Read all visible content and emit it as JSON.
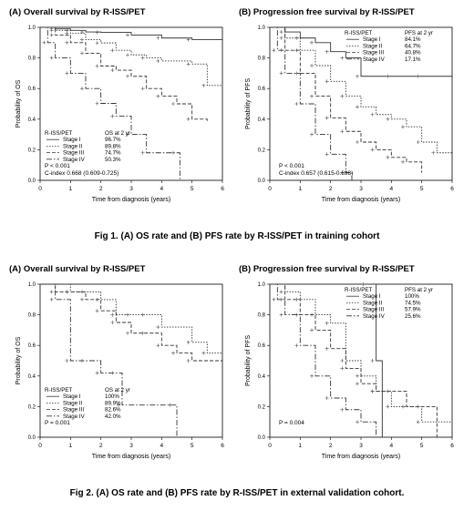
{
  "figure1": {
    "caption": "Fig 1. (A) OS rate and (B) PFS rate by R-ISS/PET in training cohort"
  },
  "figure2": {
    "caption": "Fig 2. (A) OS rate and (B) PFS rate by R-ISS/PET in external validation cohort."
  },
  "chart_data": [
    {
      "type": "line",
      "panel": "fig1A",
      "title": "(A) Overall survival by R-ISS/PET",
      "xlabel": "Time from diagnosis (years)",
      "ylabel": "Probability of OS",
      "xlim": [
        0,
        6
      ],
      "ylim": [
        0,
        1
      ],
      "xticks": [
        "0",
        "1",
        "2",
        "3",
        "4",
        "5",
        "6"
      ],
      "yticks": [
        "0.0",
        "0.2",
        "0.4",
        "0.6",
        "0.8",
        "1.0"
      ],
      "legend_header": [
        "R-ISS/PET",
        "OS at 2 yr"
      ],
      "legend_position": "bottom-left",
      "stats": [
        "P < 0.001",
        "C-index 0.668 (0.609-0.725)"
      ],
      "series": [
        {
          "name": "Stage I",
          "rate": "96.7%",
          "dash": "",
          "x": [
            0,
            0.5,
            1,
            1.5,
            2,
            3,
            4,
            5,
            6
          ],
          "y": [
            1,
            0.99,
            0.98,
            0.97,
            0.967,
            0.95,
            0.93,
            0.92,
            0.92
          ]
        },
        {
          "name": "Stage II",
          "rate": "89.8%",
          "dash": "1.5,1.5",
          "x": [
            0,
            0.5,
            1,
            1.5,
            2,
            2.5,
            3,
            3.5,
            4,
            5,
            5.5,
            6
          ],
          "y": [
            1,
            0.98,
            0.96,
            0.92,
            0.898,
            0.85,
            0.82,
            0.8,
            0.78,
            0.76,
            0.62,
            0.62
          ]
        },
        {
          "name": "Stage III",
          "rate": "74.7%",
          "dash": "4,2",
          "x": [
            0,
            0.5,
            1,
            1.5,
            2,
            2.5,
            3,
            3.5,
            4,
            4.5,
            5,
            5.5
          ],
          "y": [
            1,
            0.95,
            0.9,
            0.83,
            0.747,
            0.72,
            0.68,
            0.6,
            0.55,
            0.5,
            0.4,
            0.38
          ]
        },
        {
          "name": "Stage IV",
          "rate": "50.3%",
          "dash": "6,2,1.5,2",
          "x": [
            0,
            0.25,
            0.5,
            1,
            1.5,
            2,
            2.5,
            3,
            3.5,
            4.5,
            4.6
          ],
          "y": [
            1,
            0.9,
            0.8,
            0.7,
            0.6,
            0.503,
            0.42,
            0.3,
            0.18,
            0.18,
            0
          ]
        }
      ]
    },
    {
      "type": "line",
      "panel": "fig1B",
      "title": "(B) Progression free survival by R-ISS/PET",
      "xlabel": "Time from diagnosis (years)",
      "ylabel": "Probability of PFS",
      "xlim": [
        0,
        6
      ],
      "ylim": [
        0,
        1
      ],
      "xticks": [
        "0",
        "1",
        "2",
        "3",
        "4",
        "5",
        "6"
      ],
      "yticks": [
        "0.0",
        "0.2",
        "0.4",
        "0.6",
        "0.8",
        "1.0"
      ],
      "legend_header": [
        "R-ISS/PET",
        "PFS at 2 yr"
      ],
      "legend_position": "top-right",
      "stats": [
        "P < 0.001",
        "C-index 0.657 (0.615-0.698)"
      ],
      "series": [
        {
          "name": "Stage I",
          "rate": "84.1%",
          "dash": "",
          "x": [
            0,
            0.5,
            1,
            1.5,
            2,
            2.5,
            3,
            4,
            5,
            6
          ],
          "y": [
            1,
            0.97,
            0.93,
            0.9,
            0.841,
            0.8,
            0.68,
            0.68,
            0.68,
            0.68
          ]
        },
        {
          "name": "Stage II",
          "rate": "64.7%",
          "dash": "1.5,1.5",
          "x": [
            0,
            0.5,
            1,
            1.5,
            2,
            2.5,
            3,
            3.5,
            4,
            4.5,
            5,
            5.5,
            6
          ],
          "y": [
            1,
            0.93,
            0.85,
            0.75,
            0.647,
            0.55,
            0.48,
            0.43,
            0.4,
            0.35,
            0.25,
            0.18,
            0.18
          ]
        },
        {
          "name": "Stage III",
          "rate": "40.8%",
          "dash": "4,2",
          "x": [
            0,
            0.5,
            1,
            1.5,
            2,
            2.5,
            3,
            3.5,
            4,
            4.5,
            5
          ],
          "y": [
            1,
            0.85,
            0.7,
            0.55,
            0.408,
            0.32,
            0.25,
            0.2,
            0.15,
            0.12,
            0.05
          ]
        },
        {
          "name": "Stage IV",
          "rate": "17.1%",
          "dash": "6,2,1.5,2",
          "x": [
            0,
            0.25,
            0.5,
            1,
            1.5,
            2,
            2.5,
            2.7
          ],
          "y": [
            1,
            0.85,
            0.7,
            0.5,
            0.3,
            0.171,
            0.05,
            0
          ]
        }
      ]
    },
    {
      "type": "line",
      "panel": "fig2A",
      "title": "(A) Overall survival by R-ISS/PET",
      "xlabel": "Time from diagnosis (years)",
      "ylabel": "Probability of OS",
      "xlim": [
        0,
        6
      ],
      "ylim": [
        0,
        1
      ],
      "xticks": [
        "0",
        "1",
        "2",
        "3",
        "4",
        "5",
        "6"
      ],
      "yticks": [
        "0.0",
        "0.2",
        "0.4",
        "0.6",
        "0.8",
        "1.0"
      ],
      "legend_header": [
        "R-ISS/PET",
        "OS at 2 yr"
      ],
      "legend_position": "bottom-left",
      "stats": [
        "P = 0.001"
      ],
      "series": [
        {
          "name": "Stage I",
          "rate": "100%",
          "dash": "",
          "x": [
            0,
            6
          ],
          "y": [
            1,
            1
          ]
        },
        {
          "name": "Stage II",
          "rate": "89.9%",
          "dash": "1.5,1.5",
          "x": [
            0,
            1,
            1.5,
            2,
            2.5,
            3,
            3.5,
            4,
            5,
            5.5,
            6
          ],
          "y": [
            1,
            0.95,
            0.95,
            0.899,
            0.8,
            0.8,
            0.8,
            0.72,
            0.62,
            0.55,
            0.55
          ]
        },
        {
          "name": "Stage III",
          "rate": "82.6%",
          "dash": "4,2",
          "x": [
            0,
            0.5,
            1,
            1.5,
            2,
            2.5,
            3,
            3.5,
            4,
            4.5,
            5,
            6
          ],
          "y": [
            1,
            0.95,
            0.95,
            0.9,
            0.826,
            0.75,
            0.68,
            0.68,
            0.6,
            0.55,
            0.5,
            0.5
          ]
        },
        {
          "name": "Stage IV",
          "rate": "42.0%",
          "dash": "6,2,1.5,2",
          "x": [
            0,
            0.5,
            1,
            1.5,
            2,
            2.5,
            2.7,
            4.4,
            4.5
          ],
          "y": [
            1,
            0.9,
            0.5,
            0.5,
            0.42,
            0.42,
            0.21,
            0.21,
            0
          ]
        }
      ]
    },
    {
      "type": "line",
      "panel": "fig2B",
      "title": "(B) Progression free survival by R-ISS/PET",
      "xlabel": "Time from diagnosis (years)",
      "ylabel": "Probability of PFS",
      "xlim": [
        0,
        6
      ],
      "ylim": [
        0,
        1
      ],
      "xticks": [
        "0",
        "1",
        "2",
        "3",
        "4",
        "5",
        "6"
      ],
      "yticks": [
        "0.0",
        "0.2",
        "0.4",
        "0.6",
        "0.8",
        "1.0"
      ],
      "legend_header": [
        "R-ISS/PET",
        "PFS at 2 yr"
      ],
      "legend_position": "top-right",
      "stats": [
        "P = 0.004"
      ],
      "series": [
        {
          "name": "Stage I",
          "rate": "100%",
          "dash": "",
          "x": [
            0,
            3.2,
            3.5,
            3.7
          ],
          "y": [
            1,
            1,
            0.5,
            0
          ]
        },
        {
          "name": "Stage II",
          "rate": "74.5%",
          "dash": "1.5,1.5",
          "x": [
            0,
            0.5,
            1,
            1.5,
            2,
            2.5,
            3,
            3.5,
            4,
            5,
            6
          ],
          "y": [
            1,
            0.95,
            0.9,
            0.8,
            0.745,
            0.5,
            0.4,
            0.3,
            0.2,
            0.1,
            0
          ]
        },
        {
          "name": "Stage III",
          "rate": "57.9%",
          "dash": "4,2",
          "x": [
            0,
            0.5,
            1,
            1.5,
            2,
            2.5,
            3,
            3.5,
            4,
            4.5,
            5,
            5.5
          ],
          "y": [
            1,
            0.9,
            0.8,
            0.7,
            0.579,
            0.45,
            0.35,
            0.3,
            0.3,
            0.2,
            0.2,
            0
          ]
        },
        {
          "name": "Stage IV",
          "rate": "25.6%",
          "dash": "6,2,1.5,2",
          "x": [
            0,
            0.25,
            0.5,
            1,
            1.5,
            2,
            2.5,
            3,
            3.5
          ],
          "y": [
            1,
            0.9,
            0.8,
            0.6,
            0.4,
            0.256,
            0.18,
            0.1,
            0
          ]
        }
      ]
    }
  ]
}
